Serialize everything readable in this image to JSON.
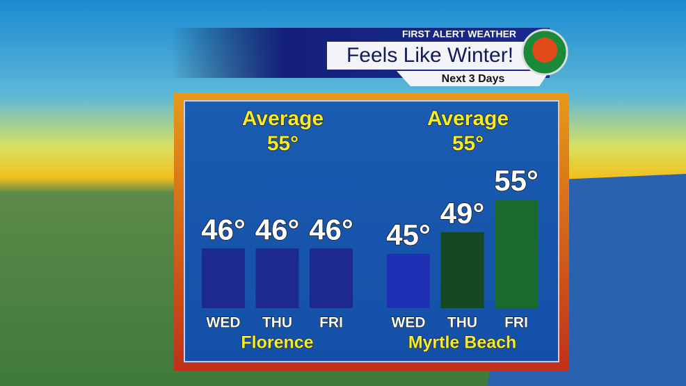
{
  "header": {
    "brand": "FIRST ALERT WEATHER",
    "title": "Feels Like Winter!",
    "subtitle": "Next 3 Days"
  },
  "chart_data": [
    {
      "type": "bar",
      "title": "Florence",
      "annotations": [
        "Average",
        "55°"
      ],
      "categories": [
        "WED",
        "THU",
        "FRI"
      ],
      "values": [
        46,
        46,
        46
      ],
      "value_labels": [
        "46°",
        "46°",
        "46°"
      ],
      "colors": [
        "#1b2a8c",
        "#1b2a8c",
        "#1b2a8c"
      ],
      "ylim": [
        35,
        60
      ]
    },
    {
      "type": "bar",
      "title": "Myrtle Beach",
      "annotations": [
        "Average",
        "55°"
      ],
      "categories": [
        "WED",
        "THU",
        "FRI"
      ],
      "values": [
        45,
        49,
        55
      ],
      "value_labels": [
        "45°",
        "49°",
        "55°"
      ],
      "colors": [
        "#1f30b4",
        "#134823",
        "#1a6a2c"
      ],
      "ylim": [
        35,
        60
      ]
    }
  ]
}
